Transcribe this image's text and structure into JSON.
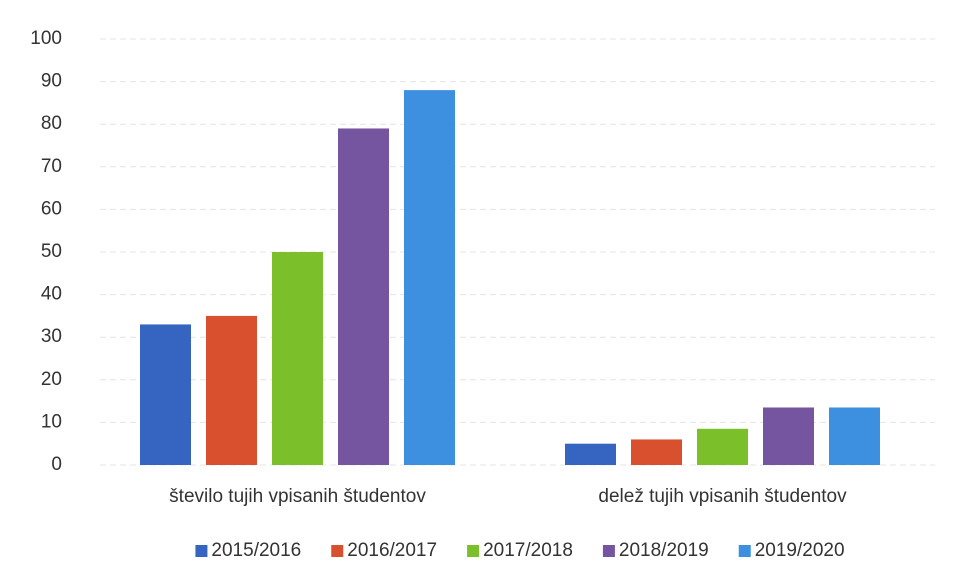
{
  "chart_data": {
    "type": "bar",
    "categories": [
      "število tujih vpisanih študentov",
      "delež tujih vpisanih študentov"
    ],
    "series": [
      {
        "name": "2015/2016",
        "color": "#3565c0",
        "values": [
          33,
          5
        ]
      },
      {
        "name": "2016/2017",
        "color": "#d9502f",
        "values": [
          35,
          6
        ]
      },
      {
        "name": "2017/2018",
        "color": "#7bbf2a",
        "values": [
          50,
          8.5
        ]
      },
      {
        "name": "2018/2019",
        "color": "#7655a0",
        "values": [
          79,
          13.5
        ]
      },
      {
        "name": "2019/2020",
        "color": "#3d8fe0",
        "values": [
          88,
          13.5
        ]
      }
    ],
    "ylim": [
      0,
      100
    ],
    "yticks": [
      0,
      10,
      20,
      30,
      40,
      50,
      60,
      70,
      80,
      90,
      100
    ],
    "grid": true,
    "legend": "bottom"
  }
}
